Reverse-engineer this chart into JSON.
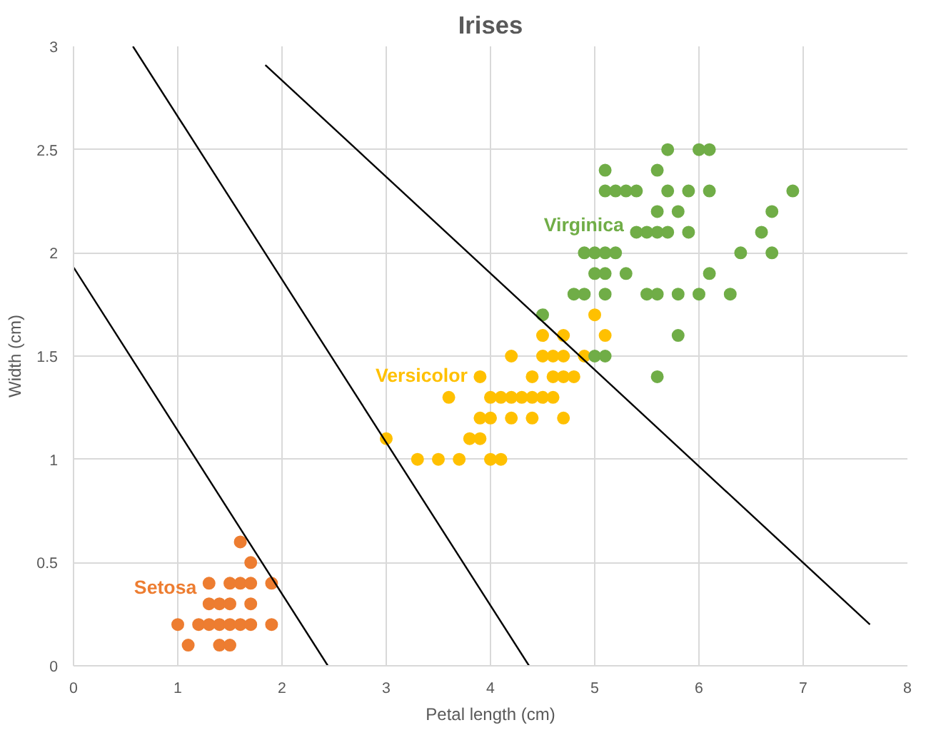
{
  "chart_data": {
    "type": "scatter",
    "title": "Irises",
    "xlabel": "Petal length (cm)",
    "ylabel": "Width (cm)",
    "xlim": [
      0,
      8
    ],
    "ylim": [
      0,
      3
    ],
    "xticks": [
      0,
      1,
      2,
      3,
      4,
      5,
      6,
      7,
      8
    ],
    "yticks": [
      0,
      0.5,
      1,
      1.5,
      2,
      2.5,
      3
    ],
    "grid": true,
    "marker": "circle",
    "series": [
      {
        "name": "Setosa",
        "color": "#ed7d31",
        "x": [
          1.6,
          1.7,
          1.3,
          1.5,
          1.6,
          1.7,
          1.9,
          1.3,
          1.4,
          1.5,
          1.7,
          1.0,
          1.2,
          1.3,
          1.4,
          1.5,
          1.6,
          1.7,
          1.9,
          1.1,
          1.4,
          1.5
        ],
        "values": [
          0.6,
          0.5,
          0.4,
          0.4,
          0.4,
          0.4,
          0.4,
          0.3,
          0.3,
          0.3,
          0.3,
          0.2,
          0.2,
          0.2,
          0.2,
          0.2,
          0.2,
          0.2,
          0.2,
          0.1,
          0.1,
          0.1
        ]
      },
      {
        "name": "Versicolor",
        "color": "#ffc000",
        "x": [
          5.0,
          4.5,
          4.7,
          5.1,
          4.2,
          4.5,
          4.6,
          4.7,
          4.9,
          3.9,
          4.4,
          4.6,
          4.7,
          4.8,
          3.6,
          4.0,
          4.1,
          4.2,
          4.3,
          4.4,
          4.5,
          4.6,
          3.9,
          4.0,
          4.2,
          4.4,
          4.7,
          3.0,
          3.8,
          3.9,
          3.3,
          3.5,
          3.7,
          4.0,
          4.1
        ],
        "values": [
          1.7,
          1.6,
          1.6,
          1.6,
          1.5,
          1.5,
          1.5,
          1.5,
          1.5,
          1.4,
          1.4,
          1.4,
          1.4,
          1.4,
          1.3,
          1.3,
          1.3,
          1.3,
          1.3,
          1.3,
          1.3,
          1.3,
          1.2,
          1.2,
          1.2,
          1.2,
          1.2,
          1.1,
          1.1,
          1.1,
          1.0,
          1.0,
          1.0,
          1.0,
          1.0
        ]
      },
      {
        "name": "Virginica",
        "color": "#70ad47",
        "x": [
          5.7,
          6.0,
          6.1,
          5.1,
          5.6,
          5.1,
          5.2,
          5.3,
          5.4,
          5.7,
          5.9,
          6.1,
          6.9,
          5.6,
          5.8,
          6.7,
          5.4,
          5.5,
          5.6,
          5.7,
          5.9,
          6.6,
          4.9,
          5.0,
          5.1,
          5.2,
          6.4,
          6.7,
          5.0,
          5.1,
          5.3,
          6.1,
          4.8,
          4.9,
          5.1,
          5.5,
          5.6,
          5.8,
          6.0,
          6.3,
          4.5,
          5.8,
          5.0,
          5.1,
          5.6
        ],
        "values": [
          2.5,
          2.5,
          2.5,
          2.4,
          2.4,
          2.3,
          2.3,
          2.3,
          2.3,
          2.3,
          2.3,
          2.3,
          2.3,
          2.2,
          2.2,
          2.2,
          2.1,
          2.1,
          2.1,
          2.1,
          2.1,
          2.1,
          2.0,
          2.0,
          2.0,
          2.0,
          2.0,
          2.0,
          1.9,
          1.9,
          1.9,
          1.9,
          1.8,
          1.8,
          1.8,
          1.8,
          1.8,
          1.8,
          1.8,
          1.8,
          1.7,
          1.6,
          1.5,
          1.5,
          1.4
        ]
      },
      {
        "type": "line",
        "marker": "none",
        "color": "#000000",
        "x": [
          0,
          2.44
        ],
        "values": [
          1.93,
          0
        ]
      },
      {
        "type": "line",
        "marker": "none",
        "color": "#000000",
        "x": [
          0.57,
          4.37
        ],
        "values": [
          3,
          0
        ]
      },
      {
        "type": "line",
        "marker": "none",
        "color": "#000000",
        "x": [
          1.84,
          7.64
        ],
        "values": [
          2.91,
          0.2
        ]
      }
    ]
  }
}
